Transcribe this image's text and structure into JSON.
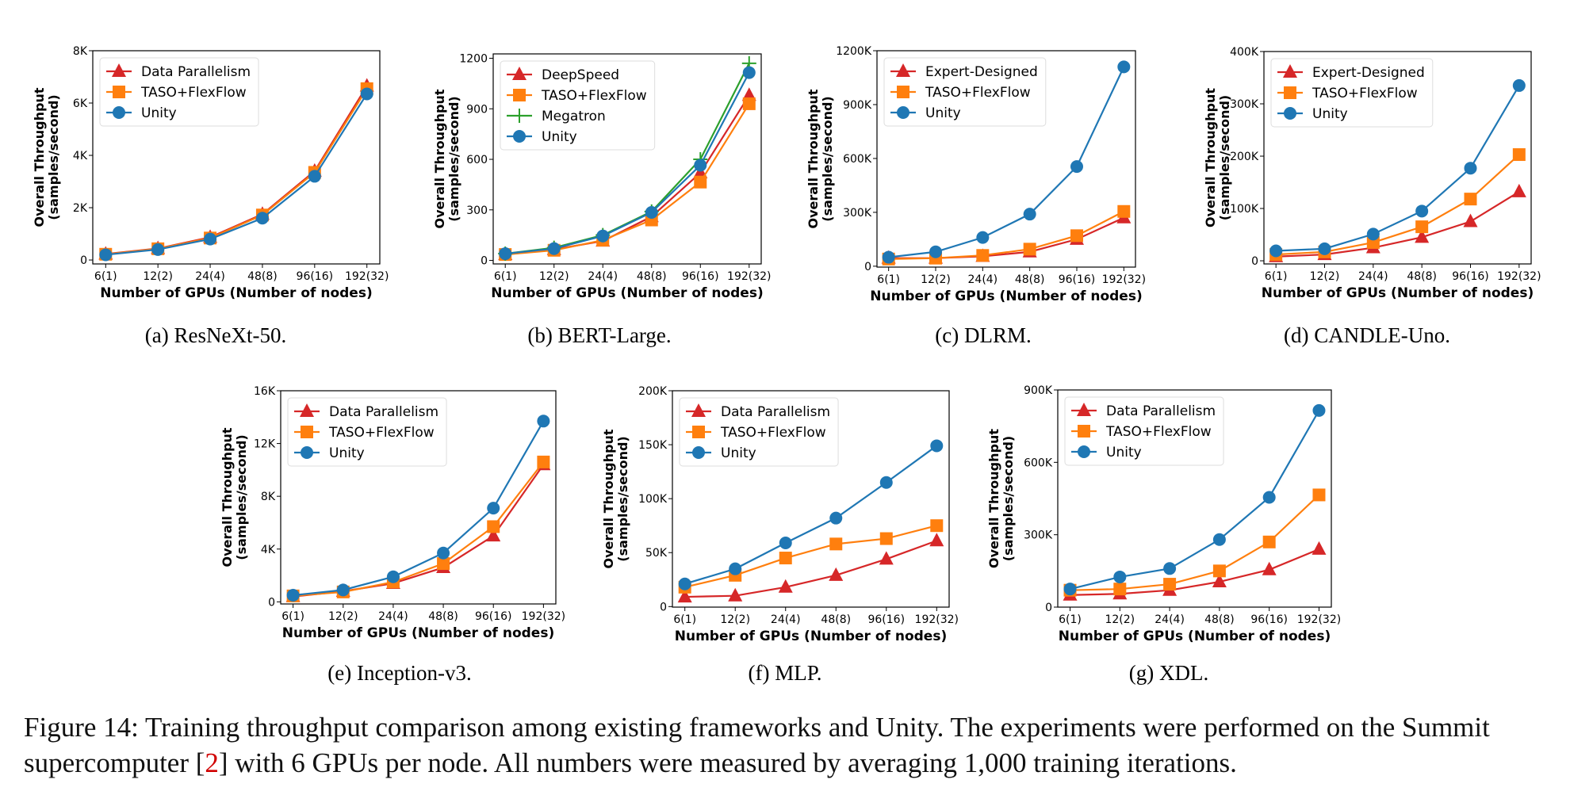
{
  "colors": {
    "red": "#d62728",
    "orange": "#ff7f0e",
    "blue": "#1f77b4",
    "green": "#2ca02c"
  },
  "figure_caption": {
    "part1": "Figure 14: Training throughput comparison among existing frameworks and Unity. The experiments were performed on the Summit supercomputer [",
    "ref": "2",
    "part2": "] with 6 GPUs per node. All numbers were measured by averaging 1,000 training iterations."
  },
  "chart_data": [
    {
      "type": "line",
      "caption": "(a) ResNeXt-50.",
      "xlabel": "Number of GPUs (Number of nodes)",
      "ylabel": [
        "Overall Throughput",
        "(samples/second)"
      ],
      "categories": [
        "6(1)",
        "12(2)",
        "24(4)",
        "48(8)",
        "96(16)",
        "192(32)"
      ],
      "ylim": [
        -150,
        8000
      ],
      "yticks": [
        0,
        2000,
        4000,
        6000,
        8000
      ],
      "ytick_labels": [
        "0",
        "2K",
        "4K",
        "6K",
        "8K"
      ],
      "legend": "top-left",
      "grid": false,
      "series": [
        {
          "name": "Data Parallelism",
          "marker": "triangle",
          "color": "#d62728",
          "values": [
            230,
            440,
            870,
            1750,
            3400,
            6650
          ]
        },
        {
          "name": "TASO+FlexFlow",
          "marker": "square",
          "color": "#ff7f0e",
          "values": [
            220,
            430,
            840,
            1720,
            3350,
            6550
          ]
        },
        {
          "name": "Unity",
          "marker": "circle",
          "color": "#1f77b4",
          "values": [
            200,
            400,
            800,
            1600,
            3200,
            6350
          ]
        }
      ]
    },
    {
      "type": "line",
      "caption": "(b) BERT-Large.",
      "xlabel": "Number of GPUs (Number of nodes)",
      "ylabel": [
        "Overall Throughput",
        "(samples/second)"
      ],
      "categories": [
        "6(1)",
        "12(2)",
        "24(4)",
        "48(8)",
        "96(16)",
        "192(32)"
      ],
      "ylim": [
        -21,
        1226
      ],
      "yticks": [
        0,
        300,
        600,
        900,
        1200
      ],
      "ytick_labels": [
        "0",
        "300",
        "600",
        "900",
        "1200"
      ],
      "legend": "top-left",
      "grid": false,
      "series": [
        {
          "name": "DeepSpeed",
          "marker": "triangle",
          "color": "#d62728",
          "values": [
            35,
            65,
            115,
            260,
            520,
            980
          ]
        },
        {
          "name": "TASO+FlexFlow",
          "marker": "square",
          "color": "#ff7f0e",
          "values": [
            35,
            60,
            120,
            240,
            465,
            930
          ]
        },
        {
          "name": "Megatron",
          "marker": "plus",
          "color": "#2ca02c",
          "values": [
            40,
            75,
            150,
            290,
            600,
            1170
          ]
        },
        {
          "name": "Unity",
          "marker": "circle",
          "color": "#1f77b4",
          "values": [
            40,
            70,
            145,
            285,
            565,
            1115
          ]
        }
      ]
    },
    {
      "type": "line",
      "caption": "(c) DLRM.",
      "xlabel": "Number of GPUs (Number of nodes)",
      "ylabel": [
        "Overall Throughput",
        "(samples/second)"
      ],
      "categories": [
        "6(1)",
        "12(2)",
        "24(4)",
        "48(8)",
        "96(16)",
        "192(32)"
      ],
      "ylim": [
        -5000,
        1200000
      ],
      "yticks": [
        0,
        300000,
        600000,
        900000,
        1200000
      ],
      "ytick_labels": [
        "0",
        "300K",
        "600K",
        "900K",
        "1200K"
      ],
      "legend": "top-left",
      "grid": false,
      "series": [
        {
          "name": "Expert-Designed",
          "marker": "triangle",
          "color": "#d62728",
          "values": [
            45000,
            45000,
            55000,
            80000,
            150000,
            270000
          ]
        },
        {
          "name": "TASO+FlexFlow",
          "marker": "square",
          "color": "#ff7f0e",
          "values": [
            40000,
            45000,
            60000,
            95000,
            170000,
            305000
          ]
        },
        {
          "name": "Unity",
          "marker": "circle",
          "color": "#1f77b4",
          "values": [
            50000,
            80000,
            160000,
            290000,
            555000,
            1110000
          ]
        }
      ]
    },
    {
      "type": "line",
      "caption": "(d) CANDLE-Uno.",
      "xlabel": "Number of GPUs (Number of nodes)",
      "ylabel": [
        "Overall Throughput",
        "(samples/second)"
      ],
      "categories": [
        "6(1)",
        "12(2)",
        "24(4)",
        "48(8)",
        "96(16)",
        "192(32)"
      ],
      "ylim": [
        -6000,
        400000
      ],
      "yticks": [
        0,
        100000,
        200000,
        300000,
        400000
      ],
      "ytick_labels": [
        "0",
        "100K",
        "200K",
        "300K",
        "400K"
      ],
      "legend": "top-left",
      "grid": false,
      "series": [
        {
          "name": "Expert-Designed",
          "marker": "triangle",
          "color": "#d62728",
          "values": [
            8000,
            12000,
            25000,
            45000,
            75000,
            132000
          ]
        },
        {
          "name": "TASO+FlexFlow",
          "marker": "square",
          "color": "#ff7f0e",
          "values": [
            12000,
            17000,
            35000,
            65000,
            118000,
            203000
          ]
        },
        {
          "name": "Unity",
          "marker": "circle",
          "color": "#1f77b4",
          "values": [
            19000,
            23000,
            51000,
            95000,
            177000,
            335000
          ]
        }
      ]
    },
    {
      "type": "line",
      "caption": "(e) Inception-v3.",
      "xlabel": "Number of GPUs (Number of nodes)",
      "ylabel": [
        "Overall Throughput",
        "(samples/second)"
      ],
      "categories": [
        "6(1)",
        "12(2)",
        "24(4)",
        "48(8)",
        "96(16)",
        "192(32)"
      ],
      "ylim": [
        -160,
        16000
      ],
      "yticks": [
        0,
        4000,
        8000,
        12000,
        16000
      ],
      "ytick_labels": [
        "0",
        "4K",
        "8K",
        "12K",
        "16K"
      ],
      "legend": "top-left",
      "grid": false,
      "series": [
        {
          "name": "Data Parallelism",
          "marker": "triangle",
          "color": "#d62728",
          "values": [
            400,
            800,
            1400,
            2600,
            5000,
            10400
          ]
        },
        {
          "name": "TASO+FlexFlow",
          "marker": "square",
          "color": "#ff7f0e",
          "values": [
            450,
            750,
            1500,
            2900,
            5700,
            10600
          ]
        },
        {
          "name": "Unity",
          "marker": "circle",
          "color": "#1f77b4",
          "values": [
            500,
            900,
            1900,
            3700,
            7100,
            13700
          ]
        }
      ]
    },
    {
      "type": "line",
      "caption": "(f) MLP.",
      "xlabel": "Number of GPUs (Number of nodes)",
      "ylabel": [
        "Overall Throughput",
        "(samples/second)"
      ],
      "categories": [
        "6(1)",
        "12(2)",
        "24(4)",
        "48(8)",
        "96(16)",
        "192(32)"
      ],
      "ylim": [
        -500,
        200000
      ],
      "yticks": [
        0,
        50000,
        100000,
        150000,
        200000
      ],
      "ytick_labels": [
        "0",
        "50K",
        "100K",
        "150K",
        "200K"
      ],
      "legend": "top-left",
      "grid": false,
      "series": [
        {
          "name": "Data Parallelism",
          "marker": "triangle",
          "color": "#d62728",
          "values": [
            9000,
            10000,
            18000,
            29000,
            44000,
            61000
          ]
        },
        {
          "name": "TASO+FlexFlow",
          "marker": "square",
          "color": "#ff7f0e",
          "values": [
            18000,
            29000,
            45000,
            58000,
            63000,
            75000
          ]
        },
        {
          "name": "Unity",
          "marker": "circle",
          "color": "#1f77b4",
          "values": [
            21000,
            35000,
            59000,
            82000,
            115000,
            149000
          ]
        }
      ]
    },
    {
      "type": "line",
      "caption": "(g) XDL.",
      "xlabel": "Number of GPUs (Number of nodes)",
      "ylabel": [
        "Overall Throughput",
        "(samples/second)"
      ],
      "categories": [
        "6(1)",
        "12(2)",
        "24(4)",
        "48(8)",
        "96(16)",
        "192(32)"
      ],
      "ylim": [
        0,
        900000
      ],
      "yticks": [
        0,
        300000,
        600000,
        900000
      ],
      "ytick_labels": [
        "0",
        "300K",
        "600K",
        "900K"
      ],
      "legend": "top-left",
      "grid": false,
      "series": [
        {
          "name": "Data Parallelism",
          "marker": "triangle",
          "color": "#d62728",
          "values": [
            50000,
            55000,
            70000,
            105000,
            155000,
            240000
          ]
        },
        {
          "name": "TASO+FlexFlow",
          "marker": "square",
          "color": "#ff7f0e",
          "values": [
            70000,
            75000,
            95000,
            150000,
            270000,
            465000
          ]
        },
        {
          "name": "Unity",
          "marker": "circle",
          "color": "#1f77b4",
          "values": [
            75000,
            125000,
            160000,
            280000,
            455000,
            815000
          ]
        }
      ]
    }
  ]
}
